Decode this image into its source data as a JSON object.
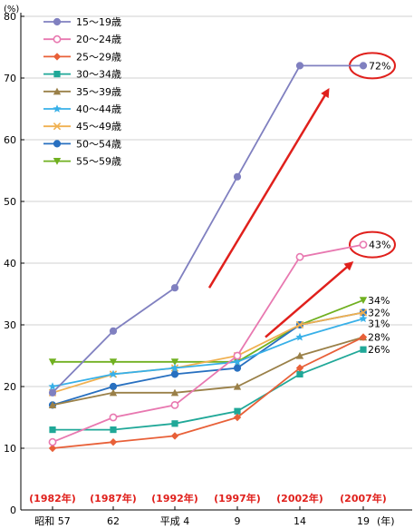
{
  "chart_data": {
    "type": "line",
    "ylabel": "(%)",
    "xunit": "(年)",
    "ylim": [
      0,
      80
    ],
    "yticks": [
      0,
      10,
      20,
      30,
      40,
      50,
      60,
      70,
      80
    ],
    "categories": [
      "昭和 57",
      "62",
      "平成 4",
      "9",
      "14",
      "19"
    ],
    "era_labels": [
      "(1982年)",
      "(1987年)",
      "(1992年)",
      "(1997年)",
      "(2002年)",
      "(2007年)"
    ],
    "series": [
      {
        "name": "15～19歳",
        "color": "#8080c0",
        "marker": "circle",
        "values": [
          19,
          29,
          36,
          54,
          72,
          72
        ]
      },
      {
        "name": "20～24歳",
        "color": "#e878b0",
        "marker": "ring",
        "values": [
          11,
          15,
          17,
          25,
          41,
          43
        ]
      },
      {
        "name": "25～29歳",
        "color": "#e86038",
        "marker": "diamond",
        "values": [
          10,
          11,
          12,
          15,
          23,
          28
        ]
      },
      {
        "name": "30～34歳",
        "color": "#20a898",
        "marker": "square",
        "values": [
          13,
          13,
          14,
          16,
          22,
          26
        ]
      },
      {
        "name": "35～39歳",
        "color": "#9a8048",
        "marker": "triangle",
        "values": [
          17,
          19,
          19,
          20,
          25,
          28
        ]
      },
      {
        "name": "40～44歳",
        "color": "#38b0e8",
        "marker": "star",
        "values": [
          20,
          22,
          23,
          24,
          28,
          31
        ]
      },
      {
        "name": "45～49歳",
        "color": "#f0b050",
        "marker": "cross",
        "values": [
          19,
          22,
          23,
          25,
          30,
          32
        ]
      },
      {
        "name": "50～54歳",
        "color": "#2870c0",
        "marker": "circle",
        "values": [
          17,
          20,
          22,
          23,
          30,
          32
        ]
      },
      {
        "name": "55～59歳",
        "color": "#70b020",
        "marker": "triangle-down",
        "values": [
          24,
          24,
          24,
          24,
          30,
          34
        ]
      }
    ],
    "end_labels": [
      "72%",
      "43%",
      "34%",
      "32%",
      "31%",
      "28%",
      "26%"
    ],
    "annotation_color": "#e0201c"
  }
}
